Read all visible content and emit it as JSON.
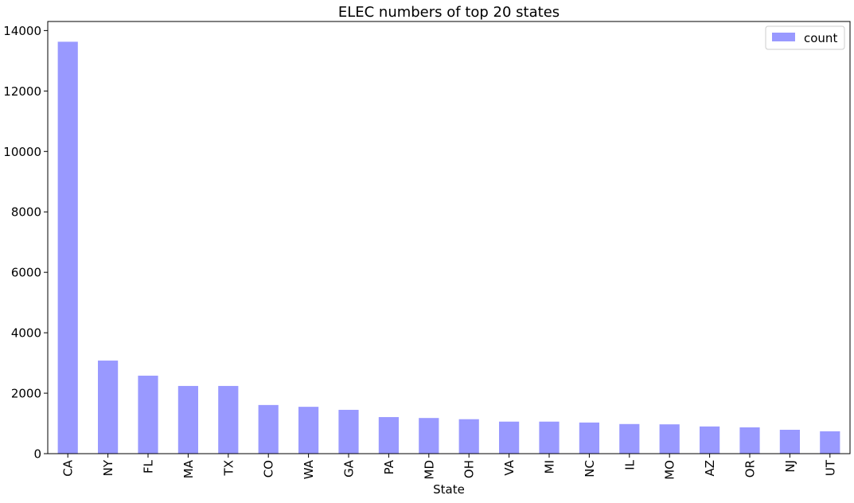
{
  "chart_data": {
    "type": "bar",
    "title": "ELEC numbers of top 20 states",
    "xlabel": "State",
    "ylabel": "",
    "categories": [
      "CA",
      "NY",
      "FL",
      "MA",
      "TX",
      "CO",
      "WA",
      "GA",
      "PA",
      "MD",
      "OH",
      "VA",
      "MI",
      "NC",
      "IL",
      "MO",
      "AZ",
      "OR",
      "NJ",
      "UT"
    ],
    "series": [
      {
        "name": "count",
        "color": "#9999ff",
        "values": [
          13630,
          3080,
          2580,
          2240,
          2240,
          1610,
          1550,
          1450,
          1210,
          1180,
          1140,
          1060,
          1060,
          1030,
          980,
          970,
          900,
          870,
          790,
          740
        ]
      }
    ],
    "ylim": [
      0,
      14300
    ],
    "yticks": [
      0,
      2000,
      4000,
      6000,
      8000,
      10000,
      12000,
      14000
    ],
    "ytick_labels": [
      "0",
      "2000",
      "4000",
      "6000",
      "8000",
      "10000",
      "12000",
      "14000"
    ],
    "grid": false,
    "legend": {
      "placement": "top-right",
      "entries": [
        "count"
      ]
    }
  }
}
